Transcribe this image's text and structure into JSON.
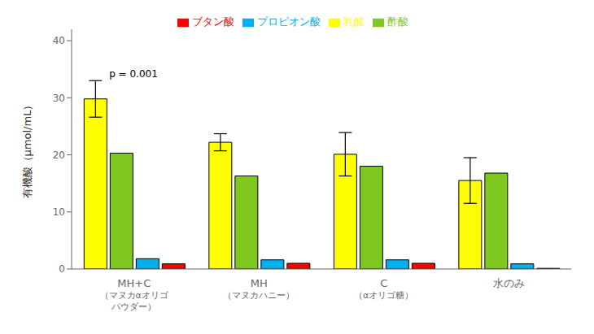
{
  "chart_data": {
    "type": "bar",
    "categories": [
      "MH+C\n（マヌカαオリゴ\nパウダー）",
      "MH\n（マヌカハニー）",
      "C\n（αオリゴ糖）",
      "水のみ"
    ],
    "series": [
      {
        "name": "乳酸",
        "color": "#ffff00",
        "values": [
          29.8,
          22.2,
          20.1,
          15.5
        ],
        "errors": [
          3.2,
          1.5,
          3.8,
          4.0
        ]
      },
      {
        "name": "酢酸",
        "color": "#7ec820",
        "values": [
          20.3,
          16.3,
          18.0,
          16.8
        ]
      },
      {
        "name": "プロピオン酸",
        "color": "#00b0f0",
        "values": [
          1.8,
          1.6,
          1.6,
          0.9
        ]
      },
      {
        "name": "ブタン酸",
        "color": "#ff0000",
        "values": [
          0.9,
          1.0,
          1.0,
          0.12
        ]
      }
    ],
    "ylabel": "有機酸（μmol/mL）",
    "annotation": "p = 0.001",
    "ylim": [
      0,
      42
    ],
    "yticks": [
      0,
      10,
      20,
      30,
      40
    ],
    "grid": false,
    "legend": "top"
  }
}
